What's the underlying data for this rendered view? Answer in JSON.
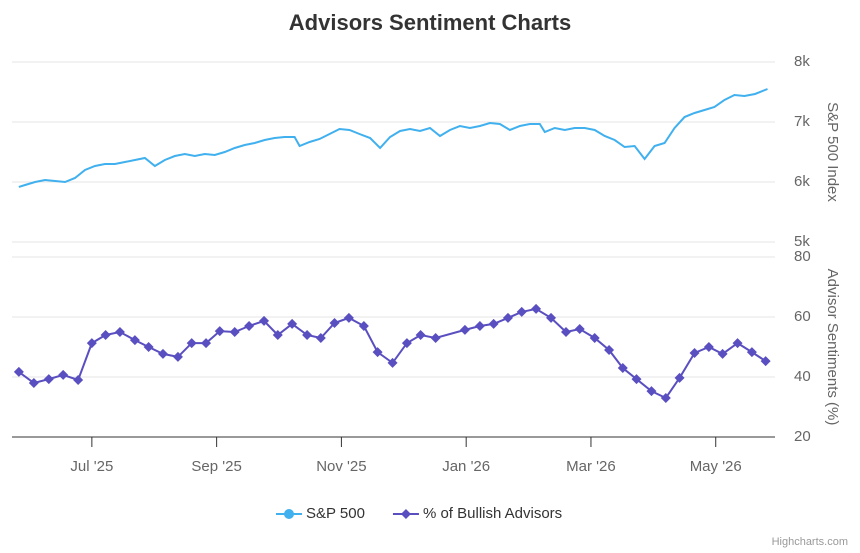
{
  "chart_data": {
    "type": "line",
    "title": "Advisors Sentiment Charts",
    "ylabel": "S&P 500 Index",
    "y2label": "Advisor Sentiments (%)",
    "credits": "Highcharts.com",
    "grid": true,
    "legend": "bottom",
    "xlim": [
      -1.28,
      10.95
    ],
    "xticks": [
      {
        "value": 0,
        "label": "Jul '25"
      },
      {
        "value": 2,
        "label": "Sep '25"
      },
      {
        "value": 4,
        "label": "Nov '25"
      },
      {
        "value": 6,
        "label": "Jan '26"
      },
      {
        "value": 8,
        "label": "Mar '26"
      },
      {
        "value": 10,
        "label": "May '26"
      }
    ],
    "ylim": [
      5000,
      8000
    ],
    "yticks": [
      {
        "value": 5000,
        "label": "5k"
      },
      {
        "value": 6000,
        "label": "6k"
      },
      {
        "value": 7000,
        "label": "7k"
      },
      {
        "value": 8000,
        "label": "8k"
      }
    ],
    "y2lim": [
      20,
      80
    ],
    "y2ticks": [
      20,
      40,
      60,
      80
    ],
    "series": [
      {
        "name": "S&P 500",
        "color": "#40b0ee",
        "marker": "circle",
        "axis": "y",
        "x": [
          -1.17,
          -1.07,
          -0.91,
          -0.75,
          -0.59,
          -0.43,
          -0.27,
          -0.11,
          0.05,
          0.21,
          0.37,
          0.53,
          0.69,
          0.85,
          1.01,
          1.17,
          1.33,
          1.49,
          1.65,
          1.81,
          1.97,
          2.13,
          2.29,
          2.45,
          2.61,
          2.77,
          2.93,
          3.09,
          3.25,
          3.33,
          3.49,
          3.65,
          3.81,
          3.97,
          4.13,
          4.29,
          4.46,
          4.62,
          4.78,
          4.94,
          5.1,
          5.26,
          5.42,
          5.58,
          5.74,
          5.9,
          6.06,
          6.22,
          6.38,
          6.54,
          6.7,
          6.86,
          7.02,
          7.18,
          7.26,
          7.42,
          7.58,
          7.74,
          7.9,
          8.06,
          8.22,
          8.38,
          8.54,
          8.7,
          8.86,
          9.02,
          9.18,
          9.34,
          9.5,
          9.66,
          9.82,
          9.98,
          10.14,
          10.3,
          10.46,
          10.63,
          10.83
        ],
        "values": [
          5917,
          5950,
          6000,
          6033,
          6017,
          6000,
          6067,
          6200,
          6267,
          6300,
          6300,
          6333,
          6367,
          6400,
          6267,
          6367,
          6433,
          6467,
          6433,
          6467,
          6450,
          6500,
          6567,
          6617,
          6650,
          6700,
          6733,
          6750,
          6750,
          6600,
          6667,
          6717,
          6800,
          6883,
          6867,
          6800,
          6733,
          6567,
          6750,
          6850,
          6883,
          6850,
          6900,
          6767,
          6867,
          6933,
          6900,
          6933,
          6983,
          6967,
          6867,
          6933,
          6967,
          6967,
          6833,
          6900,
          6867,
          6900,
          6900,
          6867,
          6767,
          6700,
          6583,
          6600,
          6383,
          6600,
          6650,
          6900,
          7083,
          7150,
          7200,
          7250,
          7367,
          7450,
          7433,
          7467,
          7550
        ]
      },
      {
        "name": "% of Bullish Advisors",
        "color": "#5a4fc0",
        "marker": "diamond",
        "axis": "y2",
        "x": [
          -1.17,
          -0.93,
          -0.69,
          -0.46,
          -0.22,
          0,
          0.22,
          0.45,
          0.69,
          0.91,
          1.14,
          1.38,
          1.6,
          1.83,
          2.05,
          2.29,
          2.52,
          2.76,
          2.98,
          3.21,
          3.45,
          3.67,
          3.89,
          4.12,
          4.36,
          4.58,
          4.82,
          5.05,
          5.27,
          5.51,
          5.98,
          6.22,
          6.44,
          6.67,
          6.89,
          7.12,
          7.36,
          7.6,
          7.82,
          8.06,
          8.29,
          8.51,
          8.73,
          8.97,
          9.2,
          9.42,
          9.66,
          9.89,
          10.11,
          10.35,
          10.58,
          10.8
        ],
        "values": [
          41.7,
          38,
          39.3,
          40.7,
          39,
          51.3,
          54,
          55,
          52.3,
          50,
          47.7,
          46.7,
          51.3,
          51.3,
          55.3,
          55,
          57,
          58.7,
          54,
          57.7,
          54,
          53,
          58,
          59.7,
          57,
          48.3,
          44.7,
          51.3,
          54,
          53,
          55.7,
          57,
          57.7,
          59.7,
          61.7,
          62.7,
          59.7,
          55,
          56,
          53,
          49,
          43,
          39.3,
          35.3,
          33,
          39.7,
          48,
          50,
          47.7,
          51.3,
          48.3,
          45.3
        ]
      }
    ]
  }
}
